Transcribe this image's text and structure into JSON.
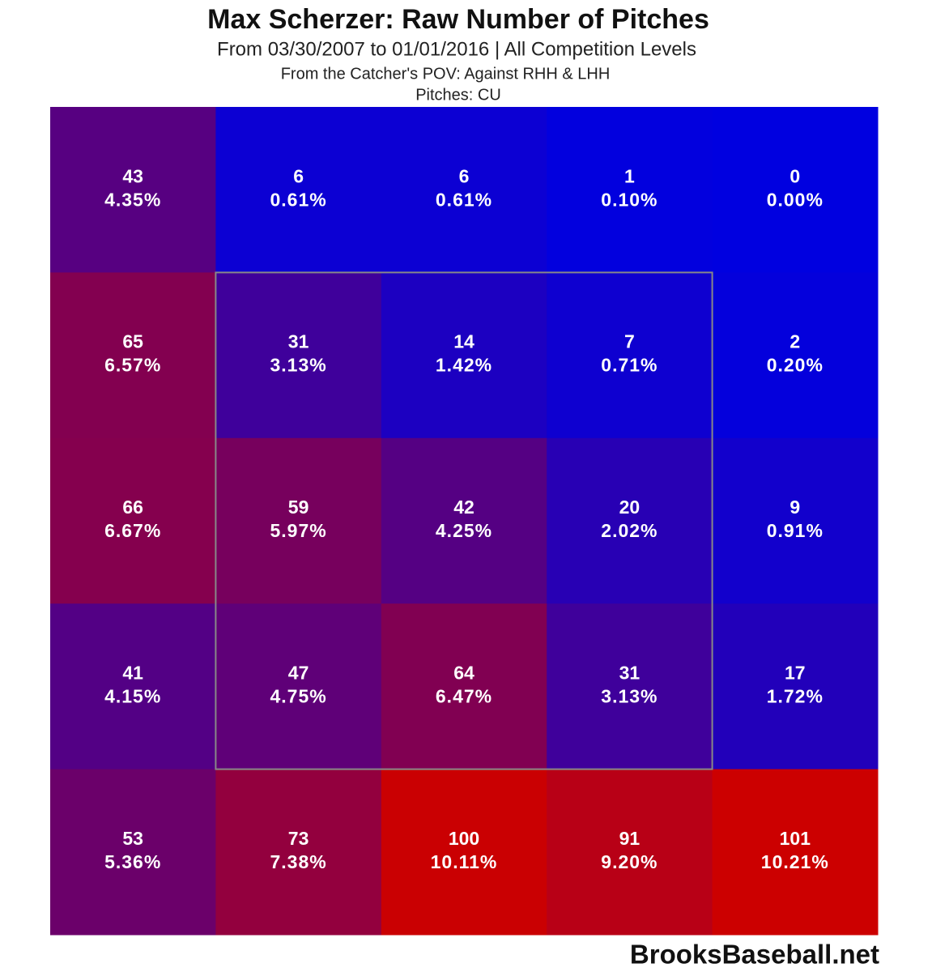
{
  "chart_data": {
    "type": "heatmap",
    "title": "Max Scherzer: Raw Number of Pitches",
    "subtitle": "From 03/30/2007 to 01/01/2016 | All Competition Levels",
    "notes": [
      "From the Catcher's POV:   Against RHH & LHH",
      "Pitches:  CU"
    ],
    "credit": "BrooksBaseball.net",
    "colors": {
      "low": "#0000e0",
      "high": "#cc0000"
    },
    "values": [
      [
        43,
        6,
        6,
        1,
        0
      ],
      [
        65,
        31,
        14,
        7,
        2
      ],
      [
        66,
        59,
        42,
        20,
        9
      ],
      [
        41,
        47,
        64,
        31,
        17
      ],
      [
        53,
        73,
        100,
        91,
        101
      ]
    ],
    "shares": [
      [
        4.35,
        0.61,
        0.61,
        0.1,
        0.0
      ],
      [
        6.57,
        3.13,
        1.42,
        0.71,
        0.2
      ],
      [
        6.67,
        5.97,
        4.25,
        2.02,
        0.91
      ],
      [
        4.15,
        4.75,
        6.47,
        3.13,
        1.72
      ],
      [
        5.36,
        7.38,
        10.11,
        9.2,
        10.21
      ]
    ],
    "share_labels": [
      [
        "4.35%",
        "0.61%",
        "0.61%",
        "0.10%",
        "0.00%"
      ],
      [
        "6.57%",
        "3.13%",
        "1.42%",
        "0.71%",
        "0.20%"
      ],
      [
        "6.67%",
        "5.97%",
        "4.25%",
        "2.02%",
        "0.91%"
      ],
      [
        "4.15%",
        "4.75%",
        "6.47%",
        "3.13%",
        "1.72%"
      ],
      [
        "5.36%",
        "7.38%",
        "10.11%",
        "9.20%",
        "10.21%"
      ]
    ]
  }
}
